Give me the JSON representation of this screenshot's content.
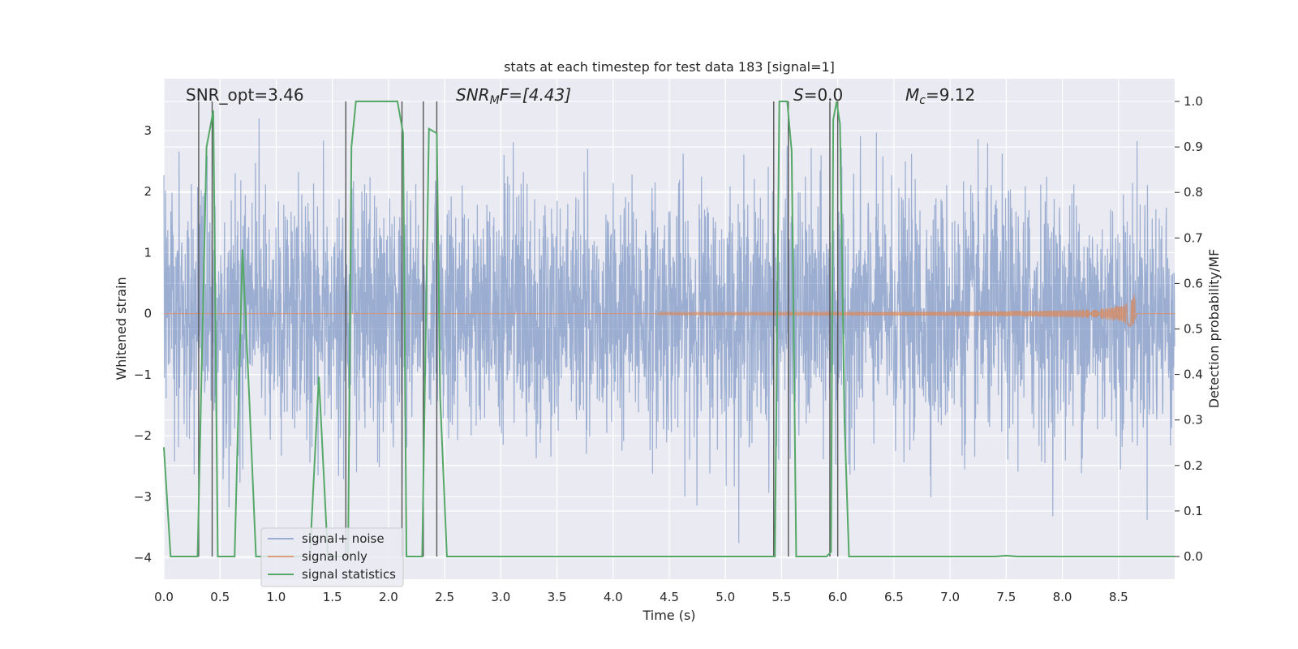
{
  "chart_data": {
    "type": "line",
    "title": "stats at each timestep for test data 183 [signal=1]",
    "xlabel": "Time (s)",
    "ylabel": "Whitened strain",
    "y2label": "Detection probability/MF",
    "xlim": [
      0.0,
      9.0
    ],
    "ylim": [
      -4.35,
      3.85
    ],
    "y2lim": [
      -0.05,
      1.05
    ],
    "xticks": [
      "0.0",
      "0.5",
      "1.0",
      "1.5",
      "2.0",
      "2.5",
      "3.0",
      "3.5",
      "4.0",
      "4.5",
      "5.0",
      "5.5",
      "6.0",
      "6.5",
      "7.0",
      "7.5",
      "8.0",
      "8.5"
    ],
    "yticks": [
      "3",
      "2",
      "1",
      "0",
      "−1",
      "−2",
      "−3",
      "−4"
    ],
    "y2ticks": [
      "1.0",
      "0.9",
      "0.8",
      "0.7",
      "0.6",
      "0.5",
      "0.4",
      "0.3",
      "0.2",
      "0.1",
      "0.0"
    ],
    "grid": true,
    "legend": {
      "location": "lower-left",
      "entries": [
        "signal+ noise",
        "signal only",
        "signal statistics"
      ]
    },
    "annotations": {
      "snr_opt": "SNR_opt=3.46",
      "snr_mf_main": "SNR",
      "snr_mf_sub": "M",
      "snr_mf_rest": "F=[4.43]",
      "s_main": "S",
      "s_rest": "=0.0",
      "mc_main": "M",
      "mc_sub": "c",
      "mc_rest": "=9.12"
    },
    "series": [
      {
        "name": "signal+ noise",
        "axis": "left",
        "color": "#4c72b0",
        "noise_std": 1.0,
        "t_range": [
          0.0,
          9.0
        ]
      },
      {
        "name": "signal only",
        "axis": "left",
        "color": "#dd8452",
        "chirp_start": 4.4,
        "merger_time": 8.65,
        "peak_amplitude": 0.38
      },
      {
        "name": "signal statistics",
        "axis": "right",
        "color": "#55a868",
        "x": [
          0.0,
          0.06,
          0.2,
          0.3,
          0.38,
          0.44,
          0.48,
          0.52,
          0.6,
          0.63,
          0.7,
          0.76,
          0.82,
          0.9,
          1.0,
          1.1,
          1.2,
          1.3,
          1.38,
          1.46,
          1.6,
          1.64,
          1.67,
          1.71,
          1.75,
          1.85,
          2.0,
          2.08,
          2.13,
          2.16,
          2.2,
          2.3,
          2.36,
          2.43,
          2.46,
          2.52,
          2.6,
          2.7,
          3.0,
          4.0,
          5.0,
          5.4,
          5.44,
          5.48,
          5.55,
          5.59,
          5.63,
          5.7,
          5.8,
          5.9,
          5.94,
          5.96,
          5.99,
          6.02,
          6.06,
          6.1,
          6.13,
          6.5,
          7.0,
          7.4,
          7.5,
          7.6,
          8.0,
          8.5,
          9.0
        ],
        "y": [
          0.24,
          0.0,
          0.0,
          0.0,
          0.9,
          0.98,
          0.0,
          0.0,
          0.0,
          0.0,
          0.675,
          0.35,
          0.0,
          0.0,
          0.0,
          0.0,
          0.0,
          0.0,
          0.395,
          0.0,
          0.0,
          0.0,
          0.9,
          1.0,
          1.0,
          1.0,
          1.0,
          1.0,
          0.93,
          0.0,
          0.0,
          0.0,
          0.94,
          0.93,
          0.35,
          0.0,
          0.0,
          0.0,
          0.0,
          0.0,
          0.0,
          0.0,
          0.0,
          1.0,
          1.0,
          0.89,
          0.0,
          0.0,
          0.0,
          0.0,
          0.01,
          0.96,
          1.0,
          0.95,
          0.3,
          0.0,
          0.0,
          0.0,
          0.0,
          0.0,
          0.002,
          0.0,
          0.0,
          0.0,
          0.0
        ]
      }
    ],
    "detection_markers": [
      0.31,
      0.43,
      1.62,
      2.12,
      2.31,
      2.43,
      5.43,
      5.56,
      5.93,
      6.0
    ]
  }
}
